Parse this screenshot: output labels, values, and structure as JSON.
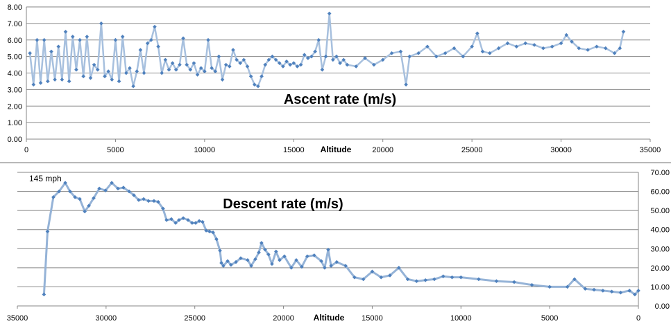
{
  "chart_data": [
    {
      "type": "line",
      "title": "Ascent rate (m/s)",
      "xlabel": "Altitude",
      "ylabel": "",
      "xlim": [
        0,
        35000
      ],
      "ylim": [
        0,
        8
      ],
      "xticks": [
        "0",
        "5000",
        "10000",
        "15000",
        "20000",
        "25000",
        "30000",
        "35000"
      ],
      "yticks": [
        "0.00",
        "1.00",
        "2.00",
        "3.00",
        "4.00",
        "5.00",
        "6.00",
        "7.00",
        "8.00"
      ],
      "grid": true,
      "color": "#4F81BD",
      "x": [
        200,
        400,
        600,
        800,
        1000,
        1200,
        1400,
        1600,
        1800,
        2000,
        2200,
        2400,
        2600,
        2800,
        3000,
        3200,
        3400,
        3600,
        3800,
        4000,
        4200,
        4400,
        4600,
        4800,
        5000,
        5200,
        5400,
        5600,
        5800,
        6000,
        6200,
        6400,
        6600,
        6800,
        7000,
        7200,
        7400,
        7600,
        7800,
        8000,
        8200,
        8400,
        8600,
        8800,
        9000,
        9200,
        9400,
        9600,
        9800,
        10000,
        10200,
        10400,
        10600,
        10800,
        11000,
        11200,
        11400,
        11600,
        11800,
        12000,
        12200,
        12400,
        12600,
        12800,
        13000,
        13200,
        13400,
        13600,
        13800,
        14000,
        14200,
        14400,
        14600,
        14800,
        15000,
        15200,
        15400,
        15600,
        15800,
        16000,
        16200,
        16400,
        16600,
        16800,
        17000,
        17200,
        17400,
        17600,
        17800,
        18000,
        18500,
        19000,
        19500,
        20000,
        20500,
        21000,
        21300,
        21500,
        22000,
        22500,
        23000,
        23500,
        24000,
        24500,
        25000,
        25300,
        25600,
        26000,
        26500,
        27000,
        27500,
        28000,
        28500,
        29000,
        29500,
        30000,
        30300,
        30600,
        31000,
        31500,
        32000,
        32500,
        33000,
        33300,
        33500
      ],
      "values": [
        5.2,
        3.3,
        6.0,
        3.4,
        6.0,
        3.5,
        5.3,
        3.6,
        5.6,
        3.6,
        6.5,
        3.5,
        6.2,
        4.2,
        6.0,
        3.8,
        6.2,
        3.7,
        4.5,
        4.2,
        7.0,
        3.8,
        4.1,
        3.6,
        6.0,
        3.5,
        6.2,
        4.0,
        4.3,
        3.2,
        4.1,
        5.4,
        4.0,
        5.8,
        6.0,
        6.8,
        5.6,
        4.0,
        4.8,
        4.2,
        4.6,
        4.2,
        4.5,
        6.1,
        4.5,
        4.2,
        4.6,
        3.9,
        4.3,
        4.1,
        6.0,
        4.3,
        4.1,
        5.0,
        3.6,
        4.5,
        4.4,
        5.4,
        4.8,
        4.6,
        4.8,
        4.4,
        3.8,
        3.3,
        3.2,
        3.8,
        4.5,
        4.8,
        5.0,
        4.8,
        4.6,
        4.4,
        4.7,
        4.5,
        4.6,
        4.4,
        4.5,
        5.1,
        4.9,
        5.0,
        5.3,
        6.0,
        4.2,
        5.0,
        7.6,
        4.8,
        5.0,
        4.6,
        4.8,
        4.5,
        4.4,
        4.9,
        4.5,
        4.8,
        5.2,
        5.3,
        3.3,
        5.0,
        5.2,
        5.6,
        5.0,
        5.2,
        5.5,
        5.0,
        5.6,
        6.4,
        5.3,
        5.2,
        5.5,
        5.8,
        5.6,
        5.8,
        5.7,
        5.5,
        5.6,
        5.8,
        6.3,
        5.9,
        5.5,
        5.4,
        5.6,
        5.5,
        5.2,
        5.5,
        6.5
      ]
    },
    {
      "type": "line",
      "title": "Descent rate (m/s)",
      "xlabel": "Altitude",
      "ylabel": "",
      "xlim": [
        35000,
        0
      ],
      "ylim": [
        0,
        70
      ],
      "xticks": [
        "35000",
        "30000",
        "25000",
        "20000",
        "15000",
        "10000",
        "5000",
        "0"
      ],
      "yticks": [
        "0.00",
        "10.00",
        "20.00",
        "30.00",
        "40.00",
        "50.00",
        "60.00",
        "70.00"
      ],
      "grid": true,
      "color": "#4F81BD",
      "annotation": "145 mph",
      "x": [
        33500,
        33300,
        32970,
        32650,
        32300,
        32030,
        31750,
        31480,
        31200,
        30970,
        30700,
        30380,
        30030,
        29680,
        29330,
        29020,
        28700,
        28430,
        28160,
        27880,
        27610,
        27300,
        27060,
        26790,
        26590,
        26320,
        26080,
        25890,
        25650,
        25380,
        25150,
        24950,
        24750,
        24560,
        24360,
        24170,
        23970,
        23780,
        23580,
        23500,
        23390,
        23150,
        22960,
        22680,
        22410,
        22020,
        21820,
        21590,
        21390,
        21240,
        21040,
        20850,
        20650,
        20420,
        20220,
        19950,
        19560,
        19280,
        18970,
        18660,
        18270,
        17870,
        17680,
        17480,
        17320,
        17000,
        16500,
        16000,
        15500,
        15000,
        14500,
        14000,
        13500,
        13000,
        12500,
        12000,
        11500,
        11000,
        10500,
        10000,
        9000,
        8000,
        7000,
        6000,
        5000,
        4000,
        3600,
        3000,
        2500,
        2000,
        1500,
        1000,
        500,
        200,
        0
      ],
      "values": [
        6,
        39,
        57,
        60,
        64.5,
        60,
        57,
        56,
        49.5,
        52.5,
        56.5,
        61.5,
        60.5,
        64.5,
        61.5,
        62,
        60,
        58,
        55.5,
        56,
        55,
        55,
        54.5,
        51,
        45,
        45.5,
        43.5,
        45,
        46,
        45,
        43.5,
        43.5,
        44.5,
        44,
        39.5,
        39,
        38.5,
        35,
        29,
        22.5,
        21,
        23.5,
        21.5,
        23,
        25,
        24,
        21,
        24.5,
        28,
        33,
        29.5,
        27,
        22,
        28.5,
        24,
        26,
        20,
        24,
        20.5,
        26,
        26.5,
        23.5,
        20,
        29.5,
        21,
        23,
        21,
        15,
        14,
        18,
        15,
        16,
        20,
        14,
        13,
        13.5,
        14,
        15.5,
        15,
        15,
        14,
        13,
        12.5,
        11,
        10,
        10,
        14,
        9,
        8.5,
        8,
        7.5,
        7,
        8,
        6,
        8
      ]
    }
  ]
}
